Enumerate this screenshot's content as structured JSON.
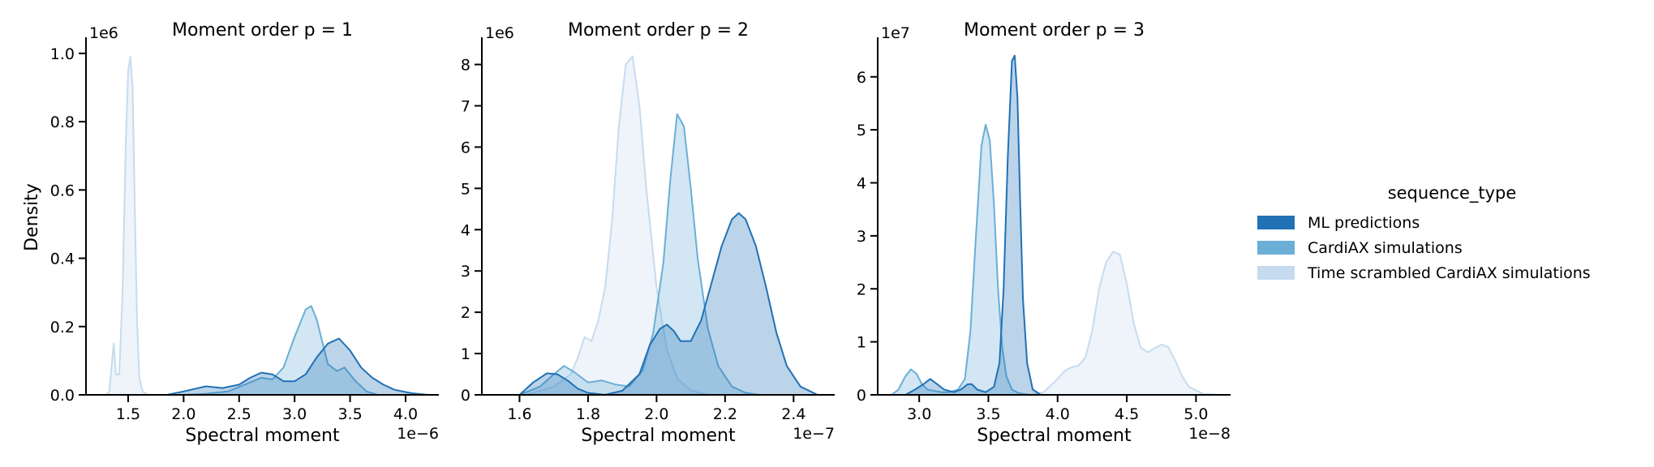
{
  "chart_data": [
    {
      "type": "area",
      "title": "Moment order p = 1",
      "xlabel": "Spectral moment",
      "ylabel": "Density",
      "x_offset_text": "1e−6",
      "y_offset_text": "1e6",
      "xlim": [
        1.12,
        4.3
      ],
      "ylim": [
        0,
        1.04
      ],
      "xticks": [
        1.5,
        2.0,
        2.5,
        3.0,
        3.5,
        4.0
      ],
      "xtick_labels": [
        "1.5",
        "2.0",
        "2.5",
        "3.0",
        "3.5",
        "4.0"
      ],
      "yticks": [
        0.0,
        0.2,
        0.4,
        0.6,
        0.8,
        1.0
      ],
      "ytick_labels": [
        "0.0",
        "0.2",
        "0.4",
        "0.6",
        "0.8",
        "1.0"
      ],
      "series": [
        {
          "name": "Time scrambled CardiAX simulations",
          "x": [
            1.3,
            1.33,
            1.35,
            1.37,
            1.39,
            1.42,
            1.45,
            1.48,
            1.5,
            1.52,
            1.54,
            1.56,
            1.58,
            1.6,
            1.63,
            1.68
          ],
          "y": [
            0.0,
            0.01,
            0.08,
            0.15,
            0.06,
            0.06,
            0.3,
            0.75,
            0.95,
            0.99,
            0.9,
            0.55,
            0.22,
            0.05,
            0.01,
            0.0
          ]
        },
        {
          "name": "CardiAX simulations",
          "x": [
            2.0,
            2.2,
            2.4,
            2.55,
            2.7,
            2.8,
            2.9,
            3.0,
            3.1,
            3.15,
            3.2,
            3.3,
            3.38,
            3.45,
            3.55,
            3.65,
            3.75
          ],
          "y": [
            0.0,
            0.003,
            0.01,
            0.03,
            0.05,
            0.045,
            0.08,
            0.17,
            0.25,
            0.26,
            0.22,
            0.09,
            0.07,
            0.08,
            0.04,
            0.01,
            0.0
          ]
        },
        {
          "name": "ML predictions",
          "x": [
            1.85,
            2.0,
            2.2,
            2.35,
            2.5,
            2.6,
            2.7,
            2.8,
            2.9,
            3.0,
            3.1,
            3.2,
            3.3,
            3.4,
            3.5,
            3.6,
            3.7,
            3.8,
            3.9,
            4.05,
            4.2
          ],
          "y": [
            0.0,
            0.01,
            0.025,
            0.02,
            0.03,
            0.05,
            0.065,
            0.06,
            0.04,
            0.04,
            0.06,
            0.11,
            0.15,
            0.165,
            0.13,
            0.08,
            0.05,
            0.03,
            0.015,
            0.005,
            0.0
          ]
        }
      ]
    },
    {
      "type": "area",
      "title": "Moment order p = 2",
      "xlabel": "Spectral moment",
      "ylabel": "",
      "x_offset_text": "1e−7",
      "y_offset_text": "1e6",
      "xlim": [
        1.49,
        2.52
      ],
      "ylim": [
        0,
        8.6
      ],
      "xticks": [
        1.6,
        1.8,
        2.0,
        2.2,
        2.4
      ],
      "xtick_labels": [
        "1.6",
        "1.8",
        "2.0",
        "2.2",
        "2.4"
      ],
      "yticks": [
        0,
        1,
        2,
        3,
        4,
        5,
        6,
        7,
        8
      ],
      "ytick_labels": [
        "0",
        "1",
        "2",
        "3",
        "4",
        "5",
        "6",
        "7",
        "8"
      ],
      "series": [
        {
          "name": "Time scrambled CardiAX simulations",
          "x": [
            1.62,
            1.7,
            1.75,
            1.77,
            1.79,
            1.81,
            1.83,
            1.85,
            1.87,
            1.89,
            1.91,
            1.93,
            1.95,
            1.97,
            2.0,
            2.03,
            2.06,
            2.1,
            2.15
          ],
          "y": [
            0.0,
            0.2,
            0.5,
            0.9,
            1.4,
            1.3,
            1.8,
            2.6,
            4.2,
            6.5,
            8.0,
            8.2,
            7.0,
            5.0,
            2.6,
            1.1,
            0.4,
            0.1,
            0.0
          ]
        },
        {
          "name": "CardiAX simulations",
          "x": [
            1.6,
            1.66,
            1.7,
            1.73,
            1.76,
            1.8,
            1.84,
            1.88,
            1.92,
            1.96,
            1.99,
            2.02,
            2.04,
            2.06,
            2.08,
            2.1,
            2.12,
            2.15,
            2.18,
            2.22,
            2.26,
            2.3
          ],
          "y": [
            0.0,
            0.2,
            0.5,
            0.7,
            0.55,
            0.3,
            0.35,
            0.25,
            0.2,
            0.6,
            1.5,
            3.2,
            5.2,
            6.8,
            6.5,
            5.0,
            3.3,
            1.6,
            0.7,
            0.2,
            0.05,
            0.0
          ]
        },
        {
          "name": "ML predictions",
          "x": [
            1.6,
            1.64,
            1.68,
            1.71,
            1.74,
            1.77,
            1.8,
            1.85,
            1.9,
            1.95,
            1.98,
            2.01,
            2.03,
            2.05,
            2.07,
            2.1,
            2.13,
            2.16,
            2.19,
            2.22,
            2.24,
            2.26,
            2.29,
            2.32,
            2.35,
            2.38,
            2.42,
            2.47
          ],
          "y": [
            0.0,
            0.3,
            0.52,
            0.5,
            0.35,
            0.15,
            0.05,
            0.0,
            0.1,
            0.5,
            1.2,
            1.6,
            1.7,
            1.55,
            1.3,
            1.3,
            1.8,
            2.7,
            3.6,
            4.25,
            4.4,
            4.25,
            3.6,
            2.6,
            1.5,
            0.7,
            0.2,
            0.0
          ]
        }
      ]
    },
    {
      "type": "area",
      "title": "Moment order p = 3",
      "xlabel": "Spectral moment",
      "ylabel": "",
      "x_offset_text": "1e−8",
      "y_offset_text": "1e7",
      "xlim": [
        2.7,
        5.25
      ],
      "ylim": [
        0,
        6.7
      ],
      "xticks": [
        3.0,
        3.5,
        4.0,
        4.5,
        5.0
      ],
      "xtick_labels": [
        "3.0",
        "3.5",
        "4.0",
        "4.5",
        "5.0"
      ],
      "yticks": [
        0,
        1,
        2,
        3,
        4,
        5,
        6
      ],
      "ytick_labels": [
        "0",
        "1",
        "2",
        "3",
        "4",
        "5",
        "6"
      ],
      "series": [
        {
          "name": "Time scrambled CardiAX simulations",
          "x": [
            3.8,
            3.9,
            4.0,
            4.05,
            4.1,
            4.15,
            4.2,
            4.25,
            4.3,
            4.35,
            4.4,
            4.45,
            4.5,
            4.55,
            4.6,
            4.65,
            4.7,
            4.75,
            4.8,
            4.85,
            4.9,
            4.95,
            5.05,
            5.15
          ],
          "y": [
            0.0,
            0.05,
            0.3,
            0.45,
            0.52,
            0.55,
            0.7,
            1.2,
            2.0,
            2.5,
            2.7,
            2.65,
            2.1,
            1.35,
            0.9,
            0.8,
            0.88,
            0.95,
            0.9,
            0.65,
            0.35,
            0.15,
            0.02,
            0.0
          ]
        },
        {
          "name": "CardiAX simulations",
          "x": [
            2.8,
            2.85,
            2.9,
            2.94,
            2.98,
            3.02,
            3.06,
            3.1,
            3.16,
            3.22,
            3.28,
            3.33,
            3.37,
            3.41,
            3.45,
            3.48,
            3.51,
            3.54,
            3.57,
            3.6,
            3.63,
            3.67,
            3.72,
            3.8
          ],
          "y": [
            0.0,
            0.1,
            0.35,
            0.48,
            0.4,
            0.2,
            0.1,
            0.08,
            0.05,
            0.05,
            0.1,
            0.3,
            1.2,
            3.0,
            4.7,
            5.1,
            4.8,
            3.6,
            2.0,
            0.9,
            0.35,
            0.1,
            0.03,
            0.0
          ]
        },
        {
          "name": "ML predictions",
          "x": [
            2.9,
            2.97,
            3.03,
            3.08,
            3.13,
            3.18,
            3.25,
            3.3,
            3.35,
            3.38,
            3.42,
            3.48,
            3.54,
            3.58,
            3.61,
            3.64,
            3.67,
            3.69,
            3.71,
            3.73,
            3.75,
            3.78,
            3.82,
            3.88
          ],
          "y": [
            0.0,
            0.1,
            0.2,
            0.3,
            0.2,
            0.1,
            0.05,
            0.1,
            0.2,
            0.2,
            0.1,
            0.05,
            0.15,
            0.6,
            2.0,
            4.5,
            6.3,
            6.4,
            5.6,
            3.6,
            1.8,
            0.6,
            0.1,
            0.0
          ]
        }
      ]
    }
  ],
  "legend": {
    "title": "sequence_type",
    "items": [
      {
        "label": "ML predictions",
        "color": "#2171b5"
      },
      {
        "label": "CardiAX simulations",
        "color": "#6baed6"
      },
      {
        "label": "Time scrambled CardiAX simulations",
        "color": "#c6dbef"
      }
    ]
  },
  "colors": {
    "ML predictions": "#2171b5",
    "CardiAX simulations": "#6baed6",
    "Time scrambled CardiAX simulations": "#c6dbef"
  }
}
